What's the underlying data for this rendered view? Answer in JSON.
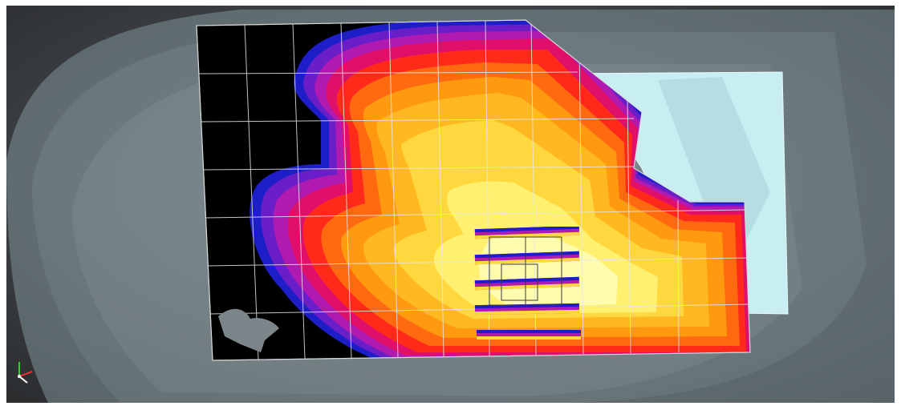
{
  "viewport": {
    "background_dark": "#202020",
    "background_mid": "#5f666c",
    "frame_color": "#ffffff"
  },
  "model": {
    "ghost_terrain_color": "#8fa3a8",
    "light_slab_color": "#c9eef2",
    "unmined_color": "#000000",
    "grid_color": "#e6e6e6"
  },
  "heatmap": {
    "palette": [
      "#1e1ec8",
      "#6a1ec8",
      "#b01ab0",
      "#e0106a",
      "#ff2a1a",
      "#ff6a10",
      "#ff9a10",
      "#ffb820",
      "#ffd840",
      "#fff070",
      "#fffcb0"
    ]
  },
  "stopes": {
    "count": 5
  },
  "axis_triad": {
    "x_color": "#ff3030",
    "y_color": "#30d030",
    "z_color": "#ffffff"
  }
}
